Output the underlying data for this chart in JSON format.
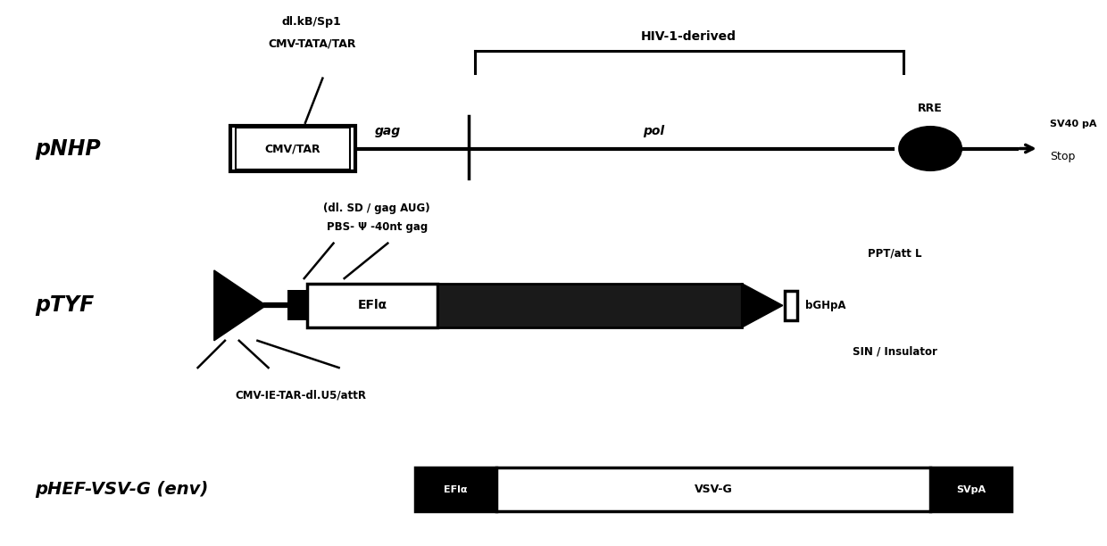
{
  "bg_color": "#ffffff",
  "fig_width": 12.4,
  "fig_height": 6.12,
  "pNHP_label": "pNHP",
  "pTYF_label": "pTYF",
  "pHEF_label": "pHEF-VSV-G (env)",
  "annotation_dl_kB": "dl.kB/Sp1",
  "annotation_cmv_tata": "CMV-TATA/TAR",
  "annotation_hiv": "HIV-1-derived",
  "annotation_dl_sd": "(dl. SD / gag AUG)",
  "annotation_pbs": "PBS- Ψ -40nt gag",
  "annotation_cmv_ie": "CMV-IE-TAR-dl.U5/attR",
  "annotation_ppt": "PPT/att L",
  "annotation_sin": "SIN / Insulator",
  "annotation_bghpa": "bGHpA",
  "annotation_gag": "gag",
  "annotation_pol": "pol",
  "annotation_rre": "RRE",
  "annotation_sv40pa": "SV40 pA",
  "annotation_stop": "Stop",
  "annotation_efla1": "EFlα",
  "annotation_efla2": "EFlα",
  "annotation_vsvg": "VSV-G",
  "annotation_svpa": "SVpA"
}
